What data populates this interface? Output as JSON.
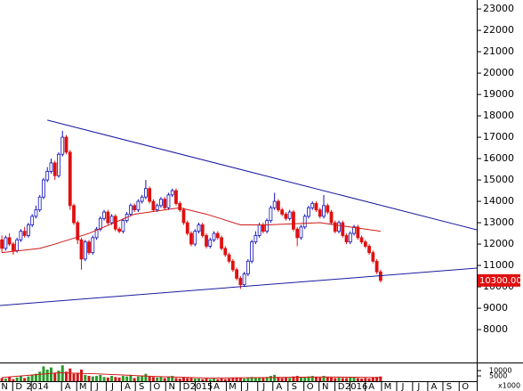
{
  "chart_data": {
    "type": "candlestick",
    "xlim": [
      -0.5,
      125.4
    ],
    "ylim": [
      6460,
      23420
    ],
    "yticks": [
      8000,
      9000,
      10000,
      11000,
      12000,
      13000,
      14000,
      15000,
      16000,
      17000,
      18000,
      19000,
      20000,
      21000,
      22000,
      23000
    ],
    "xticks": [
      {
        "value": 0.7,
        "label": "N"
      },
      {
        "value": 4.5,
        "label": "D"
      },
      {
        "value": 9.4,
        "label": "2014"
      },
      {
        "value": 17.4,
        "label": "A"
      },
      {
        "value": 21.4,
        "label": "M"
      },
      {
        "value": 25.2,
        "label": "J"
      },
      {
        "value": 29.2,
        "label": "J"
      },
      {
        "value": 33.2,
        "label": "A"
      },
      {
        "value": 36.9,
        "label": "S"
      },
      {
        "value": 40.9,
        "label": "O"
      },
      {
        "value": 44.9,
        "label": "N"
      },
      {
        "value": 48.7,
        "label": "D"
      },
      {
        "value": 52.7,
        "label": "2015"
      },
      {
        "value": 56.7,
        "label": "A"
      },
      {
        "value": 60.9,
        "label": "M"
      },
      {
        "value": 64.9,
        "label": "J"
      },
      {
        "value": 69.2,
        "label": "J"
      },
      {
        "value": 73.2,
        "label": "A"
      },
      {
        "value": 77.2,
        "label": "S"
      },
      {
        "value": 81.4,
        "label": "O"
      },
      {
        "value": 85.4,
        "label": "N"
      },
      {
        "value": 89.6,
        "label": "D"
      },
      {
        "value": 93.6,
        "label": "2016"
      },
      {
        "value": 97.6,
        "label": "A"
      },
      {
        "value": 101.9,
        "label": "M"
      },
      {
        "value": 105.9,
        "label": "J"
      },
      {
        "value": 110.1,
        "label": "J"
      },
      {
        "value": 114.1,
        "label": "A"
      },
      {
        "value": 118.1,
        "label": "S"
      },
      {
        "value": 122.4,
        "label": "O"
      }
    ],
    "up_color": "#1010c0",
    "down_color": "#e01010",
    "open": [
      12200,
      11800,
      12300,
      12000,
      11700,
      12200,
      12600,
      12400,
      12900,
      13300,
      13600,
      14200,
      15000,
      15400,
      15800,
      15200,
      16200,
      17000,
      16300,
      13800,
      13000,
      12200,
      11300,
      12100,
      11600,
      12300,
      12700,
      13200,
      13500,
      13000,
      13300,
      12700,
      12600,
      13100,
      13400,
      13800,
      13600,
      14000,
      14200,
      14600,
      14000,
      13600,
      13800,
      14100,
      13700,
      14300,
      14500,
      13900,
      13600,
      13000,
      12500,
      12000,
      12600,
      12900,
      12400,
      11900,
      12200,
      12500,
      12300,
      11800,
      11500,
      11200,
      10800,
      10400,
      10100,
      10600,
      11200,
      12100,
      12400,
      12900,
      12600,
      13100,
      13700,
      14000,
      13600,
      13400,
      13200,
      13500,
      12700,
      12300,
      12800,
      13300,
      13700,
      13900,
      13600,
      13300,
      13800,
      13500,
      13000,
      12600,
      13000,
      12400,
      12100,
      12500,
      12800,
      12300,
      12100,
      11900,
      11600,
      11200,
      10700
    ],
    "high": [
      12400,
      12400,
      12500,
      12100,
      12300,
      12700,
      12800,
      13000,
      13400,
      13800,
      14300,
      15100,
      15600,
      16000,
      15900,
      16300,
      17300,
      17100,
      16400,
      13900,
      13100,
      12300,
      12200,
      12200,
      12400,
      12800,
      13300,
      13600,
      13600,
      13400,
      13400,
      12800,
      13200,
      13500,
      13900,
      13900,
      14100,
      14300,
      15000,
      14700,
      14100,
      13900,
      14200,
      14200,
      14400,
      14600,
      14600,
      14000,
      13700,
      13100,
      12600,
      12700,
      13000,
      13000,
      12500,
      12300,
      12600,
      12600,
      12400,
      11900,
      11600,
      11300,
      10900,
      10500,
      10700,
      11300,
      12200,
      12600,
      13000,
      13000,
      13200,
      13800,
      14400,
      14100,
      13700,
      13500,
      13600,
      13600,
      12800,
      12900,
      13400,
      13800,
      14000,
      14000,
      13700,
      14300,
      13900,
      13600,
      13100,
      13100,
      13100,
      12500,
      12600,
      12900,
      12900,
      12400,
      12200,
      12000,
      11700,
      11300,
      10800
    ],
    "low": [
      11600,
      11700,
      11900,
      11500,
      11600,
      12100,
      12300,
      12300,
      12800,
      13200,
      13500,
      14100,
      14900,
      15300,
      15000,
      15100,
      16100,
      16200,
      13600,
      12900,
      12000,
      10800,
      11200,
      11500,
      11500,
      12200,
      12600,
      13100,
      12900,
      12900,
      12600,
      12500,
      12500,
      13000,
      13300,
      13500,
      13500,
      13900,
      14100,
      13900,
      13500,
      13500,
      13700,
      13600,
      13600,
      14200,
      13800,
      13500,
      12900,
      12400,
      11900,
      11900,
      12500,
      12300,
      11800,
      11800,
      12100,
      12200,
      11700,
      11400,
      11100,
      10700,
      10300,
      9900,
      10000,
      10500,
      11100,
      12000,
      12300,
      12500,
      12500,
      13000,
      13600,
      13500,
      13300,
      13100,
      13100,
      12600,
      11900,
      12200,
      12700,
      13200,
      13600,
      13500,
      13200,
      13200,
      13400,
      12900,
      12500,
      12500,
      12300,
      12000,
      12000,
      12400,
      12200,
      12000,
      11800,
      11500,
      11100,
      10600,
      10200
    ],
    "close": [
      11800,
      12300,
      12000,
      11700,
      12200,
      12600,
      12400,
      12900,
      13300,
      13600,
      14200,
      15000,
      15400,
      15800,
      15200,
      16200,
      17000,
      16300,
      13800,
      13000,
      12200,
      11300,
      12100,
      11600,
      12300,
      12700,
      13200,
      13500,
      13000,
      13300,
      12700,
      12600,
      13100,
      13400,
      13800,
      13600,
      14000,
      14200,
      14600,
      14000,
      13600,
      13800,
      14100,
      13700,
      14300,
      14500,
      13900,
      13600,
      13000,
      12500,
      12000,
      12600,
      12900,
      12400,
      11900,
      12200,
      12500,
      12300,
      11800,
      11500,
      11200,
      10800,
      10400,
      10100,
      10600,
      11200,
      12100,
      12400,
      12900,
      12600,
      13100,
      13700,
      14000,
      13600,
      13400,
      13200,
      13500,
      12700,
      12300,
      12800,
      13300,
      13700,
      13900,
      13600,
      13300,
      13800,
      13500,
      13000,
      12600,
      13000,
      12400,
      12100,
      12500,
      12800,
      12300,
      12100,
      11900,
      11600,
      11200,
      10700,
      10300
    ],
    "ma": {
      "color": "#d01818",
      "x": [
        0,
        10,
        14,
        23,
        35,
        47,
        54,
        63,
        70,
        84,
        100
      ],
      "values": [
        11600,
        11800,
        12000,
        12500,
        13400,
        13700,
        13400,
        12900,
        12900,
        13000,
        12600
      ]
    },
    "trendlines": [
      {
        "color": "#1a1aa0",
        "x": [
          12,
          125.4
        ],
        "values": [
          17800,
          12670
        ]
      },
      {
        "color": "#1a1aa0",
        "x": [
          -0.5,
          125.4
        ],
        "values": [
          9125,
          10875
        ]
      }
    ],
    "last_price": {
      "value": 10300,
      "label": "10300.00",
      "color": "#e01010"
    },
    "volume": {
      "unit_label": "x1000",
      "ylim": [
        0,
        16000
      ],
      "yticks": [
        5000,
        10000
      ],
      "up_color": "#2a9a2a",
      "down_color": "#d01818",
      "values": [
        3000,
        2500,
        4000,
        2000,
        3500,
        5000,
        3000,
        4500,
        6000,
        7000,
        9000,
        14000,
        11000,
        13000,
        8000,
        10000,
        15000,
        9000,
        12000,
        7000,
        8000,
        11000,
        6000,
        5000,
        4500,
        5000,
        6000,
        4000,
        3500,
        5000,
        4000,
        3500,
        5000,
        4500,
        6000,
        3000,
        4500,
        5000,
        7000,
        5000,
        4000,
        3500,
        4000,
        3000,
        4500,
        5000,
        3000,
        2500,
        3500,
        3000,
        3000,
        2500,
        2500,
        2000,
        2500,
        2000,
        2500,
        2000,
        2500,
        2000,
        2500,
        3000,
        3500,
        3000,
        2500,
        3500,
        4000,
        3000,
        3500,
        3000,
        4000,
        5000,
        6000,
        4000,
        3000,
        3500,
        3000,
        4500,
        5000,
        3500,
        4000,
        4500,
        5000,
        4000,
        3500,
        5000,
        4000,
        3500,
        3000,
        3500,
        3000,
        3000,
        3500,
        4000,
        3000,
        2500,
        3000,
        2500,
        3500,
        4000,
        4500
      ],
      "ma": {
        "color": "#d01818",
        "x": [
          0,
          15,
          25,
          40,
          55,
          70,
          85,
          100
        ],
        "values": [
          3500,
          8000,
          7000,
          4500,
          3000,
          3500,
          4000,
          3500
        ]
      }
    }
  }
}
